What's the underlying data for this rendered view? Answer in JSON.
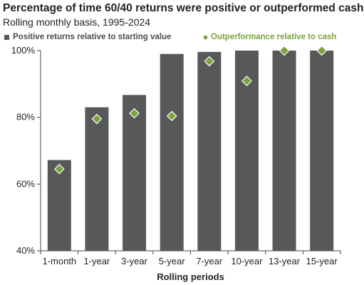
{
  "chart_data": {
    "type": "bar",
    "title": "Percentage of time 60/40 returns were positive or outperformed cash",
    "subtitle": "Rolling monthly basis, 1995-2024",
    "xlabel": "Rolling periods",
    "ylabel": "",
    "categories": [
      "1-month",
      "1-year",
      "3-year",
      "5-year",
      "7-year",
      "10-year",
      "13-year",
      "15-year"
    ],
    "ylim": [
      40,
      100
    ],
    "yticks": [
      "40%",
      "60%",
      "80%",
      "100%"
    ],
    "grid": false,
    "legend_position": "top",
    "series": [
      {
        "name": "Positive returns relative to starting value",
        "kind": "bar",
        "color": "#565859",
        "values": [
          67.2,
          83.0,
          86.7,
          99.0,
          99.6,
          100,
          100,
          100
        ]
      },
      {
        "name": "Outperformance relative to cash",
        "kind": "marker",
        "color": "#7aa33a",
        "values": [
          64.5,
          79.5,
          81.2,
          80.4,
          96.8,
          90.9,
          100,
          100
        ]
      }
    ]
  }
}
